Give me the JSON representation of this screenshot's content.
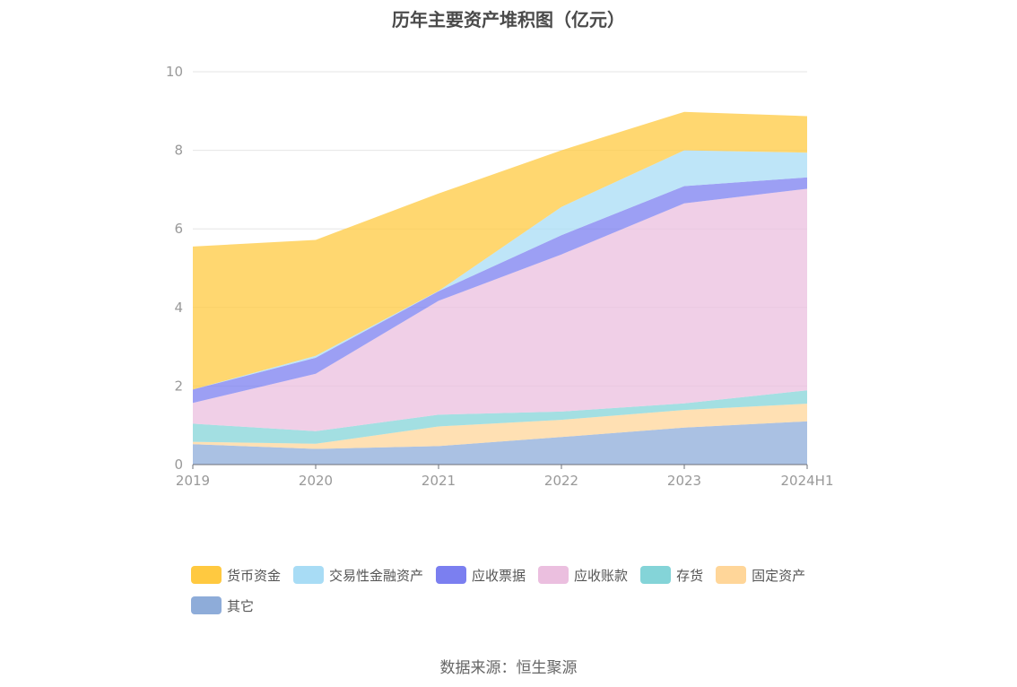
{
  "chart_data": {
    "type": "area",
    "stacked": true,
    "title": "历年主要资产堆积图（亿元）",
    "categories": [
      "2019",
      "2020",
      "2021",
      "2022",
      "2023",
      "2024H1"
    ],
    "ylim": [
      0,
      10
    ],
    "yticks": [
      0,
      2,
      4,
      6,
      8,
      10
    ],
    "grid": true,
    "legend_position": "bottom",
    "series": [
      {
        "name": "其它",
        "color": "#8eacd9",
        "values": [
          0.52,
          0.4,
          0.47,
          0.7,
          0.94,
          1.1
        ]
      },
      {
        "name": "固定资产",
        "color": "#ffd699",
        "values": [
          0.06,
          0.13,
          0.5,
          0.44,
          0.45,
          0.45
        ]
      },
      {
        "name": "存货",
        "color": "#84d4d8",
        "values": [
          0.46,
          0.32,
          0.3,
          0.21,
          0.17,
          0.34
        ]
      },
      {
        "name": "应收账款",
        "color": "#ebbfdf",
        "values": [
          0.53,
          1.46,
          2.9,
          4.0,
          5.09,
          5.13
        ]
      },
      {
        "name": "应收票据",
        "color": "#7b7ff0",
        "values": [
          0.34,
          0.41,
          0.24,
          0.49,
          0.44,
          0.29
        ]
      },
      {
        "name": "交易性金融资产",
        "color": "#a8dcf5",
        "values": [
          0.0,
          0.05,
          0.01,
          0.72,
          0.91,
          0.63
        ]
      },
      {
        "name": "货币资金",
        "color": "#ffc940",
        "values": [
          3.64,
          2.95,
          2.48,
          1.44,
          0.98,
          0.93
        ]
      }
    ]
  },
  "legend_order": [
    "货币资金",
    "交易性金融资产",
    "应收票据",
    "应收账款",
    "存货",
    "固定资产",
    "其它"
  ],
  "source": "数据来源：恒生聚源"
}
